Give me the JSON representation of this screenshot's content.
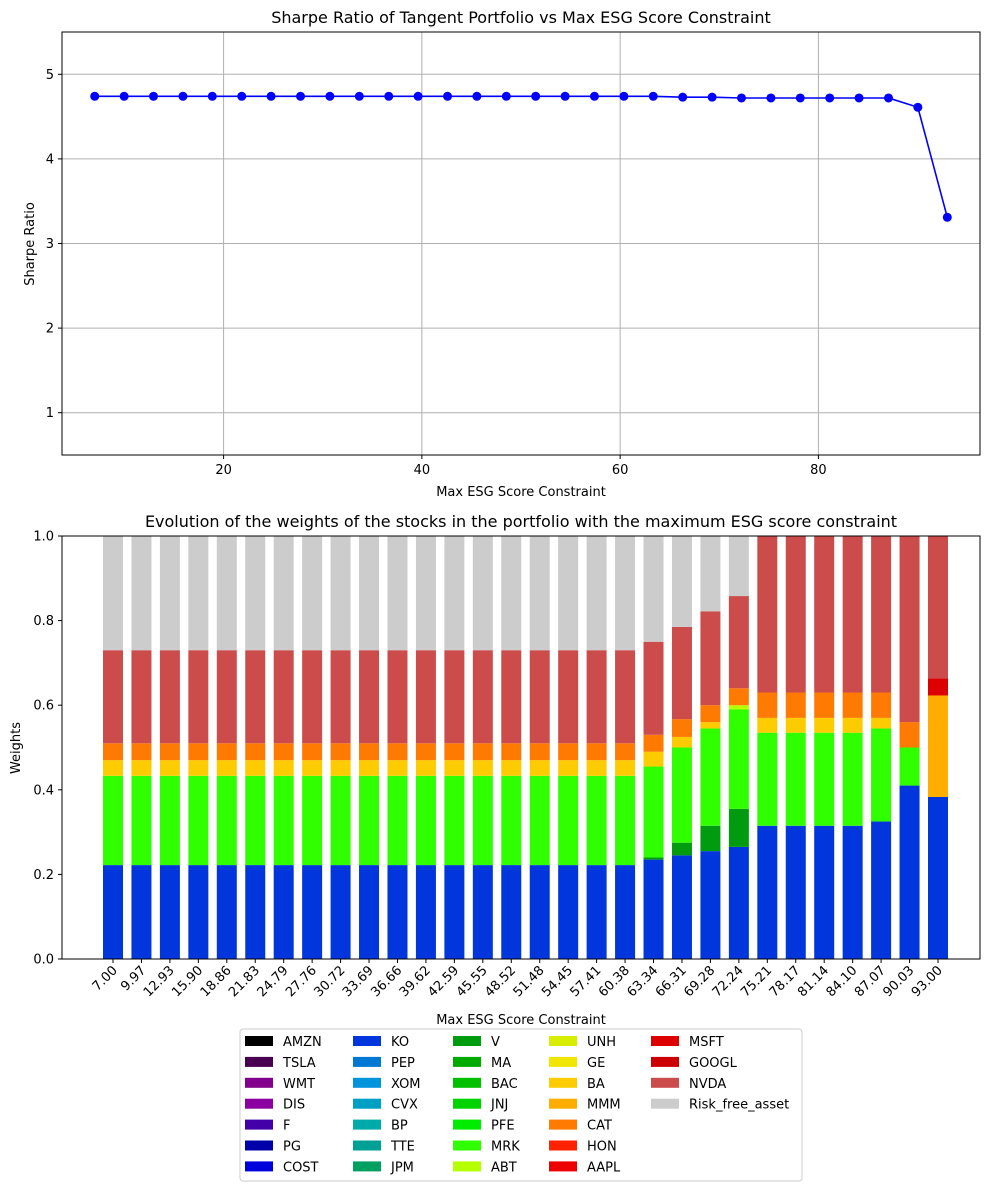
{
  "chart_data": [
    {
      "type": "line",
      "title": "Sharpe Ratio of Tangent Portfolio vs Max ESG Score Constraint",
      "xlabel": "Max ESG Score Constraint",
      "ylabel": "Sharpe Ratio",
      "xlim": [
        3.7,
        96.3
      ],
      "ylim": [
        0.5,
        5.5
      ],
      "xticks": [
        "20",
        "40",
        "60",
        "80"
      ],
      "yticks": [
        "1",
        "2",
        "3",
        "4",
        "5"
      ],
      "grid": true,
      "color": "#0000ff",
      "series": [
        {
          "x": [
            7.0,
            9.97,
            12.93,
            15.9,
            18.86,
            21.83,
            24.79,
            27.76,
            30.72,
            33.69,
            36.66,
            39.62,
            42.59,
            45.55,
            48.52,
            51.48,
            54.45,
            57.41,
            60.38,
            63.34,
            66.31,
            69.28,
            72.24,
            75.21,
            78.17,
            81.14,
            84.1,
            87.07,
            90.03,
            93.0
          ],
          "y": [
            4.74,
            4.74,
            4.74,
            4.74,
            4.74,
            4.74,
            4.74,
            4.74,
            4.74,
            4.74,
            4.74,
            4.74,
            4.74,
            4.74,
            4.74,
            4.74,
            4.74,
            4.74,
            4.74,
            4.74,
            4.73,
            4.73,
            4.72,
            4.72,
            4.72,
            4.72,
            4.72,
            4.72,
            4.61,
            3.31
          ]
        }
      ]
    },
    {
      "type": "bar",
      "stacked": true,
      "title": "Evolution of the weights of the stocks in the portfolio with the maximum ESG score constraint",
      "xlabel": "Max ESG Score Constraint",
      "ylabel": "Weights",
      "ylim": [
        0,
        1
      ],
      "yticks": [
        "0.0",
        "0.2",
        "0.4",
        "0.6",
        "0.8",
        "1.0"
      ],
      "categories": [
        "7.00",
        "9.97",
        "12.93",
        "15.90",
        "18.86",
        "21.83",
        "24.79",
        "27.76",
        "30.72",
        "33.69",
        "36.66",
        "39.62",
        "42.59",
        "45.55",
        "48.52",
        "51.48",
        "54.45",
        "57.41",
        "60.38",
        "63.34",
        "66.31",
        "69.28",
        "72.24",
        "75.21",
        "78.17",
        "81.14",
        "84.10",
        "87.07",
        "90.03",
        "93.00"
      ],
      "legend_position": "bottom",
      "legend": [
        {
          "name": "AMZN",
          "color": "#000000"
        },
        {
          "name": "TSLA",
          "color": "#4a0050"
        },
        {
          "name": "WMT",
          "color": "#82008c"
        },
        {
          "name": "DIS",
          "color": "#8a00a0"
        },
        {
          "name": "F",
          "color": "#4400a8"
        },
        {
          "name": "PG",
          "color": "#0000aa"
        },
        {
          "name": "COST",
          "color": "#0000dd"
        },
        {
          "name": "KO",
          "color": "#0036dc"
        },
        {
          "name": "PEP",
          "color": "#0078d4"
        },
        {
          "name": "XOM",
          "color": "#0094dd"
        },
        {
          "name": "CVX",
          "color": "#00a0c4"
        },
        {
          "name": "BP",
          "color": "#00aaa8"
        },
        {
          "name": "TTE",
          "color": "#00a194"
        },
        {
          "name": "JPM",
          "color": "#00a060"
        },
        {
          "name": "V",
          "color": "#009b0f"
        },
        {
          "name": "MA",
          "color": "#00ab00"
        },
        {
          "name": "BAC",
          "color": "#00c000"
        },
        {
          "name": "JNJ",
          "color": "#00d400"
        },
        {
          "name": "PFE",
          "color": "#00ec00"
        },
        {
          "name": "MRK",
          "color": "#30ff00"
        },
        {
          "name": "ABT",
          "color": "#b4ff00"
        },
        {
          "name": "UNH",
          "color": "#d8ee00"
        },
        {
          "name": "GE",
          "color": "#f0e600"
        },
        {
          "name": "BA",
          "color": "#fccc00"
        },
        {
          "name": "MMM",
          "color": "#ffae00"
        },
        {
          "name": "CAT",
          "color": "#ff7a00"
        },
        {
          "name": "HON",
          "color": "#ff2200"
        },
        {
          "name": "AAPL",
          "color": "#ec0000"
        },
        {
          "name": "MSFT",
          "color": "#dd0000"
        },
        {
          "name": "GOOGL",
          "color": "#cc0000"
        },
        {
          "name": "NVDA",
          "color": "#cc4c4c"
        },
        {
          "name": "Risk_free_asset",
          "color": "#cccccc"
        }
      ],
      "series": [
        {
          "name": "KO",
          "color": "#0036dc",
          "values": [
            0.222,
            0.222,
            0.222,
            0.222,
            0.222,
            0.222,
            0.222,
            0.222,
            0.222,
            0.222,
            0.222,
            0.222,
            0.222,
            0.222,
            0.222,
            0.222,
            0.222,
            0.222,
            0.222,
            0.235,
            0.245,
            0.255,
            0.265,
            0.315,
            0.315,
            0.315,
            0.315,
            0.325,
            0.41,
            0.383
          ]
        },
        {
          "name": "V",
          "color": "#009b0f",
          "values": [
            0,
            0,
            0,
            0,
            0,
            0,
            0,
            0,
            0,
            0,
            0,
            0,
            0,
            0,
            0,
            0,
            0,
            0,
            0,
            0.005,
            0.03,
            0.06,
            0.09,
            0,
            0,
            0,
            0,
            0,
            0,
            0
          ]
        },
        {
          "name": "MRK",
          "color": "#30ff00",
          "values": [
            0.211,
            0.211,
            0.211,
            0.211,
            0.211,
            0.211,
            0.211,
            0.211,
            0.211,
            0.211,
            0.211,
            0.211,
            0.211,
            0.211,
            0.211,
            0.211,
            0.211,
            0.211,
            0.211,
            0.215,
            0.225,
            0.23,
            0.235,
            0.22,
            0.22,
            0.22,
            0.22,
            0.22,
            0.09,
            0
          ]
        },
        {
          "name": "ABT",
          "color": "#b4ff00",
          "values": [
            0,
            0,
            0,
            0,
            0,
            0,
            0,
            0,
            0,
            0,
            0,
            0,
            0,
            0,
            0,
            0,
            0,
            0,
            0,
            0,
            0,
            0,
            0.01,
            0,
            0,
            0,
            0,
            0,
            0,
            0
          ]
        },
        {
          "name": "BA",
          "color": "#fccc00",
          "values": [
            0.037,
            0.037,
            0.037,
            0.037,
            0.037,
            0.037,
            0.037,
            0.037,
            0.037,
            0.037,
            0.037,
            0.037,
            0.037,
            0.037,
            0.037,
            0.037,
            0.037,
            0.037,
            0.037,
            0.035,
            0.025,
            0.015,
            0,
            0.035,
            0.035,
            0.035,
            0.035,
            0.025,
            0,
            0
          ]
        },
        {
          "name": "MMM",
          "color": "#ffae00",
          "values": [
            0,
            0,
            0,
            0,
            0,
            0,
            0,
            0,
            0,
            0,
            0,
            0,
            0,
            0,
            0,
            0,
            0,
            0,
            0,
            0,
            0,
            0,
            0,
            0,
            0,
            0,
            0,
            0,
            0,
            0.24
          ]
        },
        {
          "name": "CAT",
          "color": "#ff7a00",
          "values": [
            0.04,
            0.04,
            0.04,
            0.04,
            0.04,
            0.04,
            0.04,
            0.04,
            0.04,
            0.04,
            0.04,
            0.04,
            0.04,
            0.04,
            0.04,
            0.04,
            0.04,
            0.04,
            0.04,
            0.04,
            0.042,
            0.04,
            0.04,
            0.06,
            0.06,
            0.06,
            0.06,
            0.06,
            0.06,
            0
          ]
        },
        {
          "name": "MSFT",
          "color": "#dd0000",
          "values": [
            0,
            0,
            0,
            0,
            0,
            0,
            0,
            0,
            0,
            0,
            0,
            0,
            0,
            0,
            0,
            0,
            0,
            0,
            0,
            0,
            0,
            0,
            0,
            0,
            0,
            0,
            0,
            0,
            0,
            0.04
          ]
        },
        {
          "name": "NVDA",
          "color": "#cc4c4c",
          "values": [
            0.22,
            0.22,
            0.22,
            0.22,
            0.22,
            0.22,
            0.22,
            0.22,
            0.22,
            0.22,
            0.22,
            0.22,
            0.22,
            0.22,
            0.22,
            0.22,
            0.22,
            0.22,
            0.22,
            0.22,
            0.218,
            0.222,
            0.218,
            0.37,
            0.37,
            0.37,
            0.37,
            0.37,
            0.44,
            0.337
          ]
        },
        {
          "name": "Risk_free_asset",
          "color": "#cccccc",
          "values": [
            0.27,
            0.27,
            0.27,
            0.27,
            0.27,
            0.27,
            0.27,
            0.27,
            0.27,
            0.27,
            0.27,
            0.27,
            0.27,
            0.27,
            0.27,
            0.27,
            0.27,
            0.27,
            0.27,
            0.25,
            0.215,
            0.178,
            0.142,
            0,
            0,
            0,
            0,
            0,
            0,
            0
          ]
        }
      ]
    }
  ]
}
